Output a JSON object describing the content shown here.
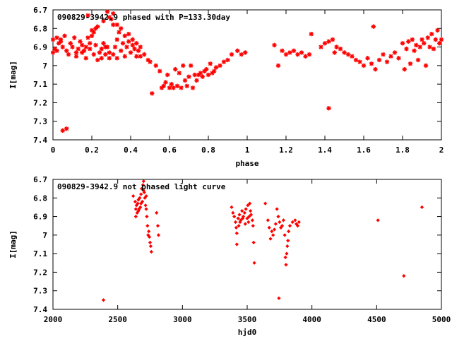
{
  "chart_data": [
    {
      "type": "scatter",
      "title": "090829-3942.9 phased with P=133.30day",
      "xlabel": "phase",
      "ylabel": "I[mag]",
      "xlim": [
        0,
        2
      ],
      "ylim": [
        6.7,
        7.4
      ],
      "y_inverted": true,
      "grid": false,
      "legend": "none",
      "marker": "asterisk",
      "color": "#ff0000",
      "xticks": [
        "0",
        "0.2",
        "0.4",
        "0.6",
        "0.8",
        "1",
        "1.2",
        "1.4",
        "1.6",
        "1.8",
        "2"
      ],
      "xtick_values": [
        0,
        0.2,
        0.4,
        0.6,
        0.8,
        1,
        1.2,
        1.4,
        1.6,
        1.8,
        2
      ],
      "yticks": [
        "6.7",
        "6.8",
        "6.9",
        "7",
        "7.1",
        "7.2",
        "7.3",
        "7.4"
      ],
      "ytick_values": [
        6.7,
        6.8,
        6.9,
        7.0,
        7.1,
        7.2,
        7.3,
        7.4
      ],
      "points": [
        [
          0.0,
          6.86
        ],
        [
          0.01,
          6.91
        ],
        [
          0.02,
          6.92
        ],
        [
          0.03,
          6.88
        ],
        [
          0.04,
          6.86
        ],
        [
          0.05,
          6.9
        ],
        [
          0.06,
          6.84
        ],
        [
          0.07,
          6.92
        ],
        [
          0.08,
          6.94
        ],
        [
          0.09,
          6.88
        ],
        [
          0.1,
          6.9
        ],
        [
          0.11,
          6.85
        ],
        [
          0.12,
          6.93
        ],
        [
          0.13,
          6.91
        ],
        [
          0.14,
          6.87
        ],
        [
          0.15,
          6.89
        ],
        [
          0.16,
          6.92
        ],
        [
          0.17,
          6.9
        ],
        [
          0.18,
          6.85
        ],
        [
          0.19,
          6.88
        ],
        [
          0.2,
          6.84
        ],
        [
          0.21,
          6.82
        ],
        [
          0.22,
          6.8
        ],
        [
          0.23,
          6.79
        ],
        [
          0.24,
          6.93
        ],
        [
          0.25,
          6.91
        ],
        [
          0.26,
          6.88
        ],
        [
          0.27,
          6.94
        ],
        [
          0.28,
          6.9
        ],
        [
          0.29,
          6.93
        ],
        [
          0.3,
          6.75
        ],
        [
          0.31,
          6.78
        ],
        [
          0.32,
          6.9
        ],
        [
          0.33,
          6.86
        ],
        [
          0.34,
          6.82
        ],
        [
          0.35,
          6.92
        ],
        [
          0.36,
          6.88
        ],
        [
          0.37,
          6.84
        ],
        [
          0.38,
          6.9
        ],
        [
          0.39,
          6.87
        ],
        [
          0.4,
          6.93
        ],
        [
          0.41,
          6.89
        ],
        [
          0.42,
          6.91
        ],
        [
          0.43,
          6.95
        ],
        [
          0.44,
          6.92
        ],
        [
          0.45,
          6.9
        ],
        [
          0.47,
          6.94
        ],
        [
          0.49,
          6.97
        ],
        [
          0.5,
          6.98
        ],
        [
          0.51,
          7.15
        ],
        [
          0.53,
          7.0
        ],
        [
          0.55,
          7.03
        ],
        [
          0.56,
          7.12
        ],
        [
          0.57,
          7.11
        ],
        [
          0.58,
          7.09
        ],
        [
          0.59,
          7.05
        ],
        [
          0.6,
          7.12
        ],
        [
          0.61,
          7.1
        ],
        [
          0.62,
          7.12
        ],
        [
          0.63,
          7.02
        ],
        [
          0.64,
          7.11
        ],
        [
          0.65,
          7.04
        ],
        [
          0.66,
          7.12
        ],
        [
          0.67,
          7.0
        ],
        [
          0.68,
          7.08
        ],
        [
          0.69,
          7.11
        ],
        [
          0.7,
          7.06
        ],
        [
          0.71,
          7.0
        ],
        [
          0.72,
          7.12
        ],
        [
          0.73,
          7.05
        ],
        [
          0.74,
          7.08
        ],
        [
          0.75,
          7.05
        ],
        [
          0.76,
          7.04
        ],
        [
          0.77,
          7.06
        ],
        [
          0.78,
          7.03
        ],
        [
          0.79,
          7.02
        ],
        [
          0.8,
          7.05
        ],
        [
          0.81,
          6.99
        ],
        [
          0.82,
          7.04
        ],
        [
          0.83,
          7.03
        ],
        [
          0.84,
          7.01
        ],
        [
          0.86,
          7.0
        ],
        [
          0.88,
          6.98
        ],
        [
          0.9,
          6.97
        ],
        [
          0.92,
          6.94
        ],
        [
          0.95,
          6.92
        ],
        [
          0.97,
          6.94
        ],
        [
          0.99,
          6.93
        ],
        [
          0.28,
          6.71
        ],
        [
          0.29,
          6.74
        ],
        [
          0.26,
          6.76
        ],
        [
          0.31,
          6.72
        ],
        [
          0.33,
          6.78
        ],
        [
          0.18,
          6.73
        ],
        [
          0.2,
          6.81
        ],
        [
          0.22,
          6.89
        ],
        [
          0.35,
          6.8
        ],
        [
          0.37,
          6.95
        ],
        [
          0.0,
          6.93
        ],
        [
          0.02,
          6.85
        ],
        [
          0.04,
          6.87
        ],
        [
          0.12,
          6.95
        ],
        [
          0.15,
          6.93
        ],
        [
          0.17,
          6.96
        ],
        [
          0.19,
          6.91
        ],
        [
          0.21,
          6.94
        ],
        [
          0.23,
          6.97
        ],
        [
          0.25,
          6.96
        ],
        [
          0.27,
          6.9
        ],
        [
          0.29,
          6.96
        ],
        [
          0.31,
          6.94
        ],
        [
          0.33,
          6.96
        ],
        [
          0.39,
          6.83
        ],
        [
          0.41,
          6.86
        ],
        [
          0.43,
          6.88
        ],
        [
          0.45,
          6.95
        ],
        [
          0.05,
          7.35
        ],
        [
          0.07,
          7.34
        ],
        [
          1.14,
          6.89
        ],
        [
          1.16,
          7.0
        ],
        [
          1.18,
          6.92
        ],
        [
          1.2,
          6.94
        ],
        [
          1.22,
          6.93
        ],
        [
          1.24,
          6.92
        ],
        [
          1.26,
          6.94
        ],
        [
          1.28,
          6.93
        ],
        [
          1.3,
          6.95
        ],
        [
          1.32,
          6.94
        ],
        [
          1.33,
          6.83
        ],
        [
          1.38,
          6.9
        ],
        [
          1.4,
          6.88
        ],
        [
          1.42,
          6.87
        ],
        [
          1.44,
          6.86
        ],
        [
          1.45,
          6.93
        ],
        [
          1.46,
          6.9
        ],
        [
          1.48,
          6.91
        ],
        [
          1.5,
          6.93
        ],
        [
          1.52,
          6.94
        ],
        [
          1.54,
          6.95
        ],
        [
          1.56,
          6.97
        ],
        [
          1.58,
          6.98
        ],
        [
          1.6,
          7.0
        ],
        [
          1.62,
          6.96
        ],
        [
          1.64,
          6.99
        ],
        [
          1.66,
          7.02
        ],
        [
          1.65,
          6.79
        ],
        [
          1.68,
          6.97
        ],
        [
          1.7,
          6.94
        ],
        [
          1.72,
          6.98
        ],
        [
          1.74,
          6.95
        ],
        [
          1.76,
          6.93
        ],
        [
          1.78,
          6.96
        ],
        [
          1.8,
          6.88
        ],
        [
          1.81,
          7.02
        ],
        [
          1.82,
          6.91
        ],
        [
          1.83,
          6.87
        ],
        [
          1.84,
          6.99
        ],
        [
          1.85,
          6.86
        ],
        [
          1.86,
          6.92
        ],
        [
          1.87,
          6.89
        ],
        [
          1.88,
          6.97
        ],
        [
          1.89,
          6.9
        ],
        [
          1.9,
          6.86
        ],
        [
          1.91,
          6.88
        ],
        [
          1.92,
          7.0
        ],
        [
          1.93,
          6.85
        ],
        [
          1.94,
          6.9
        ],
        [
          1.95,
          6.83
        ],
        [
          1.96,
          6.91
        ],
        [
          1.97,
          6.86
        ],
        [
          1.98,
          6.81
        ],
        [
          1.99,
          6.88
        ],
        [
          2.0,
          6.86
        ],
        [
          1.42,
          7.23
        ]
      ]
    },
    {
      "type": "scatter",
      "title": "090829-3942.9 not phased light curve",
      "xlabel": "hjd0",
      "ylabel": "I[mag]",
      "xlim": [
        2000,
        5000
      ],
      "ylim": [
        6.7,
        7.4
      ],
      "y_inverted": true,
      "grid": false,
      "legend": "none",
      "marker": "diamond",
      "color": "#ff0000",
      "xticks": [
        "2000",
        "2500",
        "3000",
        "3500",
        "4000",
        "4500",
        "5000"
      ],
      "xtick_values": [
        2000,
        2500,
        3000,
        3500,
        4000,
        4500,
        5000
      ],
      "yticks": [
        "6.7",
        "6.8",
        "6.9",
        "7",
        "7.1",
        "7.2",
        "7.3",
        "7.4"
      ],
      "ytick_values": [
        6.7,
        6.8,
        6.9,
        7.0,
        7.1,
        7.2,
        7.3,
        7.4
      ],
      "points": [
        [
          2390,
          7.35
        ],
        [
          2620,
          6.79
        ],
        [
          2635,
          6.82
        ],
        [
          2640,
          6.86
        ],
        [
          2645,
          6.84
        ],
        [
          2650,
          6.88
        ],
        [
          2655,
          6.83
        ],
        [
          2660,
          6.81
        ],
        [
          2665,
          6.86
        ],
        [
          2670,
          6.8
        ],
        [
          2675,
          6.85
        ],
        [
          2680,
          6.78
        ],
        [
          2685,
          6.75
        ],
        [
          2690,
          6.82
        ],
        [
          2695,
          6.73
        ],
        [
          2700,
          6.71
        ],
        [
          2705,
          6.77
        ],
        [
          2710,
          6.8
        ],
        [
          2715,
          6.84
        ],
        [
          2720,
          6.86
        ],
        [
          2725,
          6.9
        ],
        [
          2730,
          6.95
        ],
        [
          2735,
          7.0
        ],
        [
          2740,
          6.98
        ],
        [
          2745,
          7.01
        ],
        [
          2750,
          7.04
        ],
        [
          2755,
          7.06
        ],
        [
          2760,
          7.09
        ],
        [
          2800,
          6.88
        ],
        [
          2810,
          6.95
        ],
        [
          2815,
          7.0
        ],
        [
          2640,
          6.9
        ],
        [
          2660,
          6.87
        ],
        [
          2680,
          6.83
        ],
        [
          2700,
          6.76
        ],
        [
          2720,
          6.79
        ],
        [
          3380,
          6.85
        ],
        [
          3390,
          6.88
        ],
        [
          3400,
          6.9
        ],
        [
          3410,
          6.93
        ],
        [
          3415,
          6.96
        ],
        [
          3420,
          6.99
        ],
        [
          3430,
          6.91
        ],
        [
          3440,
          6.89
        ],
        [
          3450,
          6.92
        ],
        [
          3460,
          6.87
        ],
        [
          3470,
          6.9
        ],
        [
          3480,
          6.88
        ],
        [
          3490,
          6.86
        ],
        [
          3500,
          6.91
        ],
        [
          3510,
          6.93
        ],
        [
          3520,
          6.83
        ],
        [
          3530,
          6.89
        ],
        [
          3540,
          6.92
        ],
        [
          3550,
          7.04
        ],
        [
          3555,
          7.15
        ],
        [
          3420,
          7.05
        ],
        [
          3435,
          6.95
        ],
        [
          3445,
          6.93
        ],
        [
          3465,
          6.91
        ],
        [
          3485,
          6.94
        ],
        [
          3505,
          6.84
        ],
        [
          3515,
          6.9
        ],
        [
          3525,
          6.87
        ],
        [
          3545,
          6.95
        ],
        [
          3640,
          6.83
        ],
        [
          3660,
          6.92
        ],
        [
          3670,
          6.96
        ],
        [
          3680,
          7.02
        ],
        [
          3690,
          6.98
        ],
        [
          3700,
          7.0
        ],
        [
          3710,
          6.97
        ],
        [
          3720,
          6.94
        ],
        [
          3730,
          6.86
        ],
        [
          3740,
          6.9
        ],
        [
          3745,
          7.34
        ],
        [
          3750,
          6.93
        ],
        [
          3760,
          6.96
        ],
        [
          3770,
          6.95
        ],
        [
          3780,
          6.92
        ],
        [
          3790,
          7.0
        ],
        [
          3795,
          7.12
        ],
        [
          3800,
          7.16
        ],
        [
          3805,
          7.1
        ],
        [
          3810,
          7.06
        ],
        [
          3815,
          7.03
        ],
        [
          3820,
          6.98
        ],
        [
          3830,
          6.95
        ],
        [
          3850,
          6.93
        ],
        [
          3870,
          6.92
        ],
        [
          3880,
          6.94
        ],
        [
          3890,
          6.95
        ],
        [
          3900,
          6.93
        ],
        [
          4510,
          6.92
        ],
        [
          4710,
          7.22
        ],
        [
          4850,
          6.85
        ]
      ]
    }
  ]
}
